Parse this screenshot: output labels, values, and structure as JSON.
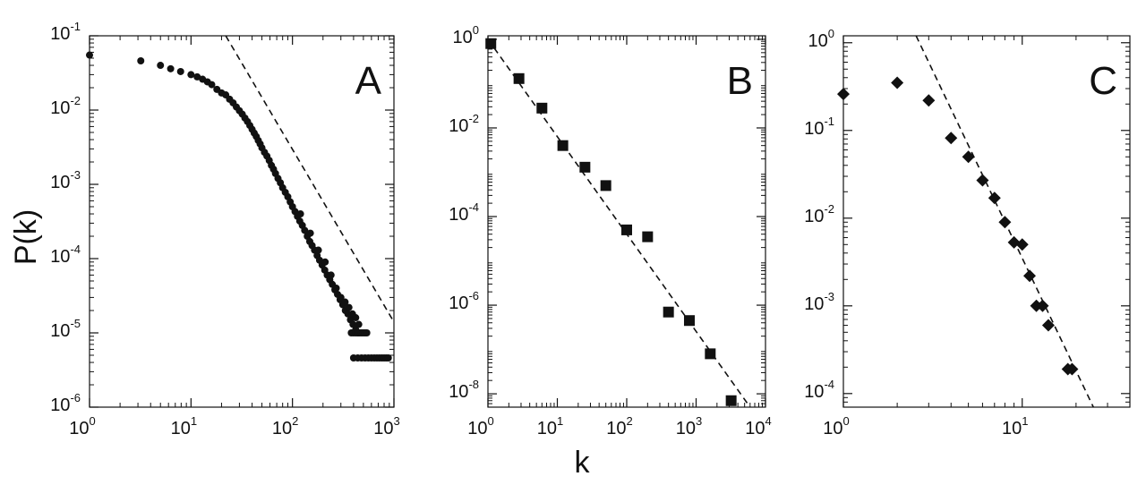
{
  "chart_data": [
    {
      "id": "A",
      "type": "scatter",
      "panel_label": "A",
      "x_scale": "log",
      "y_scale": "log",
      "xlim": [
        1,
        1000
      ],
      "ylim": [
        1e-06,
        0.1
      ],
      "xticks": [
        {
          "value": 1,
          "base": "10",
          "exp": "0"
        },
        {
          "value": 10,
          "base": "10",
          "exp": "1"
        },
        {
          "value": 100,
          "base": "10",
          "exp": "2"
        },
        {
          "value": 1000,
          "base": "10",
          "exp": "3"
        }
      ],
      "yticks": [
        {
          "value": 0.1,
          "base": "10",
          "exp": "-1"
        },
        {
          "value": 0.01,
          "base": "10",
          "exp": "-2"
        },
        {
          "value": 0.001,
          "base": "10",
          "exp": "-3"
        },
        {
          "value": 0.0001,
          "base": "10",
          "exp": "-4"
        },
        {
          "value": 1e-05,
          "base": "10",
          "exp": "-5"
        },
        {
          "value": 1e-06,
          "base": "10",
          "exp": "-6"
        }
      ],
      "marker": "circle",
      "points": [
        [
          1,
          0.055
        ],
        [
          3.2,
          0.046
        ],
        [
          5,
          0.04
        ],
        [
          6.3,
          0.036
        ],
        [
          7.9,
          0.033
        ],
        [
          10,
          0.03
        ],
        [
          11.5,
          0.028
        ],
        [
          13,
          0.026
        ],
        [
          14.5,
          0.024
        ],
        [
          16,
          0.022
        ],
        [
          18,
          0.019
        ],
        [
          20,
          0.017
        ],
        [
          22,
          0.016
        ],
        [
          24,
          0.014
        ],
        [
          26,
          0.0125
        ],
        [
          28,
          0.011
        ],
        [
          30,
          0.0098
        ],
        [
          32,
          0.0088
        ],
        [
          34,
          0.0078
        ],
        [
          36,
          0.007
        ],
        [
          38,
          0.0062
        ],
        [
          40,
          0.0055
        ],
        [
          42,
          0.0049
        ],
        [
          44,
          0.0044
        ],
        [
          46,
          0.0039
        ],
        [
          48,
          0.0035
        ],
        [
          50,
          0.0031
        ],
        [
          53,
          0.0027
        ],
        [
          56,
          0.0024
        ],
        [
          59,
          0.0021
        ],
        [
          62,
          0.0018
        ],
        [
          65,
          0.0016
        ],
        [
          68,
          0.0014
        ],
        [
          72,
          0.0012
        ],
        [
          76,
          0.00105
        ],
        [
          80,
          0.0009
        ],
        [
          85,
          0.00078
        ],
        [
          90,
          0.00068
        ],
        [
          95,
          0.00058
        ],
        [
          100,
          0.0005
        ],
        [
          106,
          0.00043
        ],
        [
          112,
          0.00037
        ],
        [
          118,
          0.00032
        ],
        [
          125,
          0.00028
        ],
        [
          132,
          0.00024
        ],
        [
          140,
          0.0002
        ],
        [
          148,
          0.00017
        ],
        [
          156,
          0.00015
        ],
        [
          165,
          0.00013
        ],
        [
          175,
          0.00011
        ],
        [
          185,
          9.5e-05
        ],
        [
          196,
          8.2e-05
        ],
        [
          208,
          7e-05
        ],
        [
          220,
          6e-05
        ],
        [
          233,
          5.2e-05
        ],
        [
          247,
          4.5e-05
        ],
        [
          262,
          3.8e-05
        ],
        [
          278,
          3.3e-05
        ],
        [
          295,
          2.8e-05
        ],
        [
          313,
          2.4e-05
        ],
        [
          332,
          2e-05
        ],
        [
          352,
          1.8e-05
        ],
        [
          373,
          1.5e-05
        ],
        [
          395,
          1.3e-05
        ],
        [
          420,
          1.1e-05
        ],
        [
          445,
          1e-05
        ],
        [
          120,
          0.0004
        ],
        [
          150,
          0.00022
        ],
        [
          180,
          0.00013
        ],
        [
          210,
          9e-05
        ],
        [
          240,
          6e-05
        ],
        [
          270,
          4e-05
        ],
        [
          300,
          3e-05
        ],
        [
          330,
          2.6e-05
        ],
        [
          360,
          2.2e-05
        ],
        [
          390,
          1.8e-05
        ],
        [
          420,
          1.6e-05
        ],
        [
          450,
          1.3e-05
        ],
        [
          380,
          1e-05
        ],
        [
          400,
          1e-05
        ],
        [
          420,
          1e-05
        ],
        [
          440,
          1e-05
        ],
        [
          460,
          1e-05
        ],
        [
          480,
          1e-05
        ],
        [
          500,
          1e-05
        ],
        [
          520,
          1e-05
        ],
        [
          540,
          1e-05
        ],
        [
          400,
          4.6e-06
        ],
        [
          440,
          4.6e-06
        ],
        [
          480,
          4.6e-06
        ],
        [
          520,
          4.6e-06
        ],
        [
          560,
          4.6e-06
        ],
        [
          600,
          4.6e-06
        ],
        [
          640,
          4.6e-06
        ],
        [
          680,
          4.6e-06
        ],
        [
          720,
          4.6e-06
        ],
        [
          760,
          4.6e-06
        ],
        [
          800,
          4.6e-06
        ],
        [
          840,
          4.6e-06
        ],
        [
          880,
          4.6e-06
        ]
      ],
      "fit_line": [
        [
          22,
          0.1
        ],
        [
          1000,
          1.4e-05
        ]
      ]
    },
    {
      "id": "B",
      "type": "scatter",
      "panel_label": "B",
      "x_scale": "log",
      "y_scale": "log",
      "xlim": [
        1,
        10000
      ],
      "ylim": [
        5e-09,
        1.2
      ],
      "xticks": [
        {
          "value": 1,
          "base": "10",
          "exp": "0"
        },
        {
          "value": 10,
          "base": "10",
          "exp": "1"
        },
        {
          "value": 100,
          "base": "10",
          "exp": "2"
        },
        {
          "value": 1000,
          "base": "10",
          "exp": "3"
        },
        {
          "value": 10000,
          "base": "10",
          "exp": "4"
        }
      ],
      "yticks": [
        {
          "value": 1,
          "base": "10",
          "exp": "0"
        },
        {
          "value": 0.01,
          "base": "10",
          "exp": "-2"
        },
        {
          "value": 0.0001,
          "base": "10",
          "exp": "-4"
        },
        {
          "value": 1e-06,
          "base": "10",
          "exp": "-6"
        },
        {
          "value": 1e-08,
          "base": "10",
          "exp": "-8"
        }
      ],
      "marker": "square",
      "points": [
        [
          1.1,
          0.8
        ],
        [
          2.8,
          0.13
        ],
        [
          6,
          0.028
        ],
        [
          12,
          0.004
        ],
        [
          25,
          0.0013
        ],
        [
          50,
          0.0005
        ],
        [
          100,
          5e-05
        ],
        [
          200,
          3.5e-05
        ],
        [
          400,
          7e-07
        ],
        [
          800,
          4.5e-07
        ],
        [
          1600,
          8e-08
        ],
        [
          3200,
          7e-09
        ]
      ],
      "fit_line": [
        [
          1,
          1
        ],
        [
          6000,
          5e-09
        ]
      ]
    },
    {
      "id": "C",
      "type": "scatter",
      "panel_label": "C",
      "x_scale": "log",
      "y_scale": "log",
      "xlim": [
        1,
        40
      ],
      "ylim": [
        7e-05,
        1.2
      ],
      "xticks": [
        {
          "value": 1,
          "base": "10",
          "exp": "0"
        },
        {
          "value": 10,
          "base": "10",
          "exp": "1"
        }
      ],
      "yticks": [
        {
          "value": 1,
          "base": "10",
          "exp": "0"
        },
        {
          "value": 0.1,
          "base": "10",
          "exp": "-1"
        },
        {
          "value": 0.01,
          "base": "10",
          "exp": "-2"
        },
        {
          "value": 0.001,
          "base": "10",
          "exp": "-3"
        },
        {
          "value": 0.0001,
          "base": "10",
          "exp": "-4"
        }
      ],
      "marker": "diamond",
      "points": [
        [
          1,
          0.26
        ],
        [
          2,
          0.35
        ],
        [
          3,
          0.22
        ],
        [
          4,
          0.082
        ],
        [
          5,
          0.05
        ],
        [
          6,
          0.027
        ],
        [
          7,
          0.017
        ],
        [
          8,
          0.009
        ],
        [
          9,
          0.0053
        ],
        [
          10,
          0.005
        ],
        [
          11,
          0.0022
        ],
        [
          12,
          0.001
        ],
        [
          13,
          0.001
        ],
        [
          14,
          0.0006
        ],
        [
          18,
          0.00019
        ],
        [
          19,
          0.00019
        ]
      ],
      "fit_line": [
        [
          2.55,
          1.2
        ],
        [
          25,
          7e-05
        ]
      ]
    }
  ],
  "shared": {
    "ylabel": "P(k)",
    "xlabel": "k"
  }
}
